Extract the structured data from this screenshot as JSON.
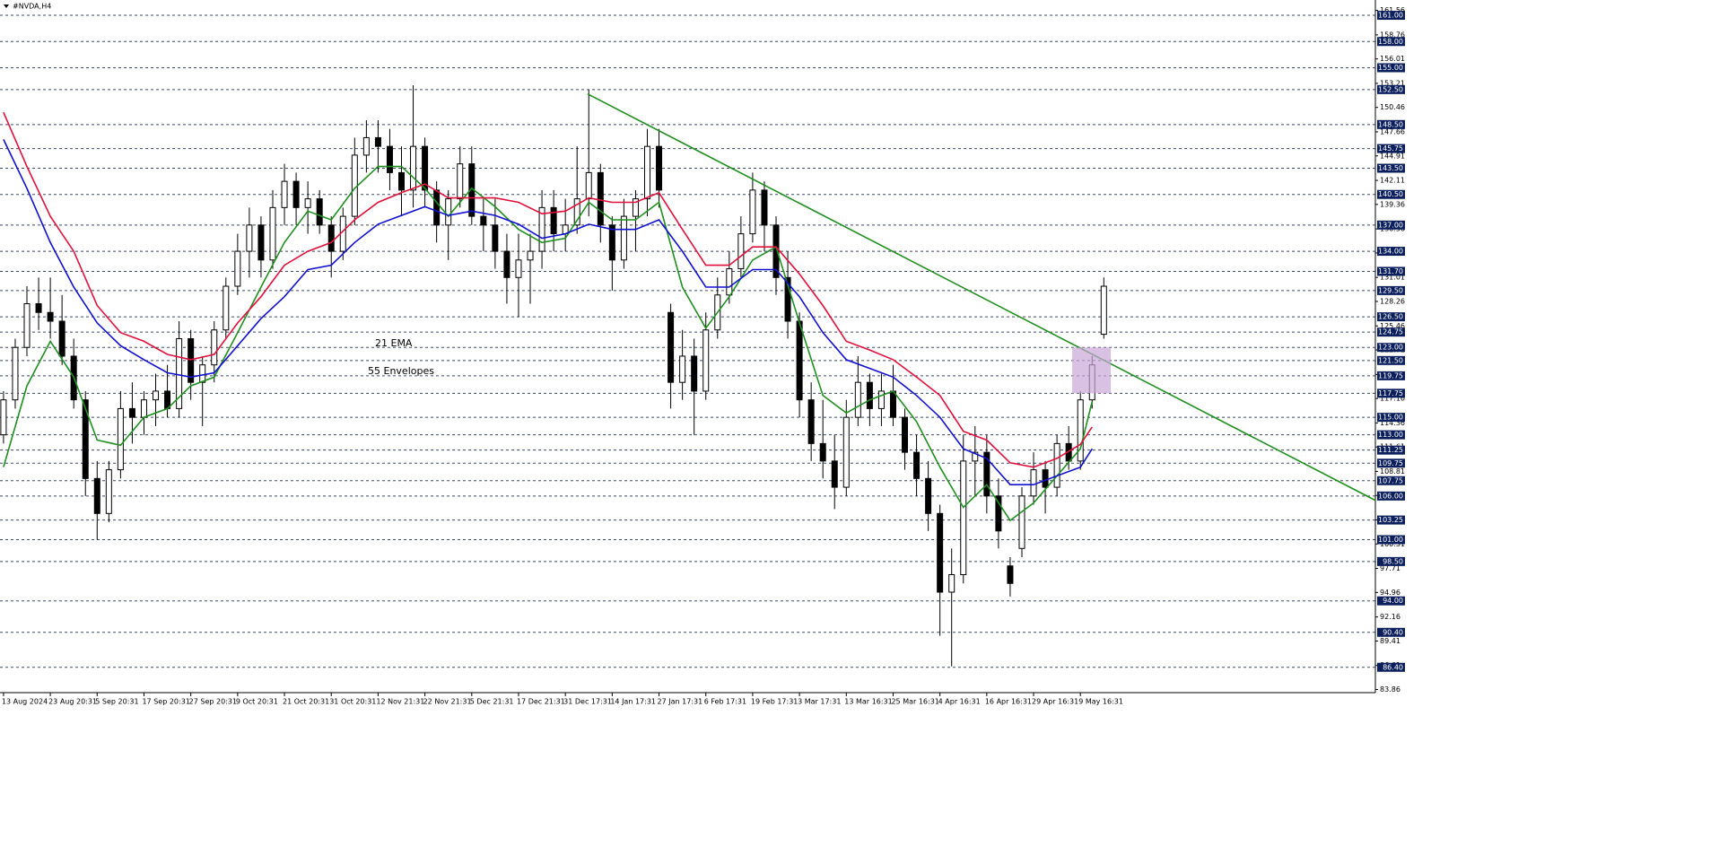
{
  "chart_data": {
    "type": "candlestick",
    "title": "#NVDA,H4",
    "xlim": [
      -0.3,
      117.2
    ],
    "ylim": [
      83.5,
      162.75
    ],
    "xticks": [
      {
        "value": 0,
        "label": "13 Aug 2024"
      },
      {
        "value": 4,
        "label": "23 Aug 20:31"
      },
      {
        "value": 8,
        "label": "5 Sep 20:31"
      },
      {
        "value": 12,
        "label": "17 Sep 20:31"
      },
      {
        "value": 16,
        "label": "27 Sep 20:31"
      },
      {
        "value": 20,
        "label": "9 Oct 20:31"
      },
      {
        "value": 24,
        "label": "21 Oct 20:31"
      },
      {
        "value": 28,
        "label": "31 Oct 20:31"
      },
      {
        "value": 32,
        "label": "12 Nov 21:31"
      },
      {
        "value": 36,
        "label": "22 Nov 21:31"
      },
      {
        "value": 40,
        "label": "5 Dec 21:31"
      },
      {
        "value": 44,
        "label": "17 Dec 21:31"
      },
      {
        "value": 48,
        "label": "31 Dec 17:31"
      },
      {
        "value": 52,
        "label": "14 Jan 17:31"
      },
      {
        "value": 56,
        "label": "27 Jan 17:31"
      },
      {
        "value": 60,
        "label": "6 Feb 17:31"
      },
      {
        "value": 64,
        "label": "19 Feb 17:31"
      },
      {
        "value": 68,
        "label": "3 Mar 17:31"
      },
      {
        "value": 72,
        "label": "13 Mar 16:31"
      },
      {
        "value": 76,
        "label": "25 Mar 16:31"
      },
      {
        "value": 80,
        "label": "4 Apr 16:31"
      },
      {
        "value": 84,
        "label": "16 Apr 16:31"
      },
      {
        "value": 88,
        "label": "29 Apr 16:31"
      },
      {
        "value": 92,
        "label": "9 May 16:31"
      }
    ],
    "yticks": [
      161.56,
      158.76,
      156.01,
      153.21,
      150.46,
      147.66,
      144.91,
      142.11,
      139.36,
      136.56,
      133.81,
      131.01,
      128.26,
      125.46,
      122.71,
      119.91,
      117.16,
      114.36,
      111.61,
      108.81,
      106.06,
      103.26,
      100.51,
      97.71,
      94.96,
      92.16,
      89.41,
      86.61,
      83.86
    ],
    "levels": [
      {
        "value": 161,
        "label": "161.00"
      },
      {
        "value": 158,
        "label": "158.00"
      },
      {
        "value": 155,
        "label": "155.00"
      },
      {
        "value": 152.5,
        "label": "152.50"
      },
      {
        "value": 148.5,
        "label": "148.50"
      },
      {
        "value": 145.75,
        "label": "145.75"
      },
      {
        "value": 143.5,
        "label": "143.50"
      },
      {
        "value": 140.5,
        "label": "140.50"
      },
      {
        "value": 137,
        "label": "137.00"
      },
      {
        "value": 134,
        "label": "134.00"
      },
      {
        "value": 131.7,
        "label": "131.70"
      },
      {
        "value": 129.5,
        "label": "129.50"
      },
      {
        "value": 126.5,
        "label": "126.50"
      },
      {
        "value": 124.75,
        "label": "124.75"
      },
      {
        "value": 123,
        "label": "123.00"
      },
      {
        "value": 121.5,
        "label": "121.50"
      },
      {
        "value": 119.75,
        "label": "119.75"
      },
      {
        "value": 117.75,
        "label": "117.75"
      },
      {
        "value": 115,
        "label": "115.00"
      },
      {
        "value": 113,
        "label": "113.00"
      },
      {
        "value": 111.25,
        "label": "111.25"
      },
      {
        "value": 109.75,
        "label": "109.75"
      },
      {
        "value": 107.75,
        "label": "107.75"
      },
      {
        "value": 106,
        "label": "106.00"
      },
      {
        "value": 103.25,
        "label": "103.25"
      },
      {
        "value": 101,
        "label": "101.00"
      },
      {
        "value": 98.5,
        "label": "98.50"
      },
      {
        "value": 94,
        "label": "94.00"
      },
      {
        "value": 90.4,
        "label": "90.40"
      },
      {
        "value": 86.4,
        "label": "86.40"
      }
    ],
    "level_color": "#3c4866",
    "level_box_color": "#0b1f5c",
    "open": [
      113,
      117,
      123,
      128,
      127,
      126,
      122,
      117,
      108,
      104,
      109,
      116,
      115,
      117,
      118,
      116,
      124,
      119,
      121,
      125,
      130,
      134,
      137,
      133,
      139,
      142,
      139,
      140,
      137,
      134,
      138,
      145,
      147,
      146,
      143,
      141,
      146,
      141,
      137,
      140,
      144,
      138,
      137,
      134,
      131,
      133,
      134,
      139,
      136,
      137,
      140,
      143,
      137,
      133,
      138,
      140,
      146,
      127,
      119,
      122,
      118,
      125,
      129,
      132,
      136,
      141,
      137,
      131,
      126,
      117,
      112,
      110,
      107,
      115,
      119,
      116,
      118,
      115,
      111,
      108,
      104,
      95,
      97,
      110,
      111,
      106,
      98,
      100,
      106,
      109,
      107,
      112,
      110,
      117,
      124.5
    ],
    "high": [
      118,
      124,
      130,
      131,
      131,
      129,
      124,
      118,
      110,
      110,
      118,
      119,
      118,
      120,
      121,
      126,
      125,
      122,
      126,
      131,
      136,
      139,
      138,
      141,
      144,
      143,
      142,
      141,
      138,
      139,
      147,
      149,
      149,
      148,
      146,
      153,
      147,
      142,
      141,
      146,
      146,
      140,
      140,
      136,
      136,
      136,
      141,
      141,
      140,
      146,
      152.5,
      144,
      138,
      140,
      141,
      148,
      148,
      128,
      125,
      124,
      127,
      131,
      134,
      138,
      143,
      142,
      138,
      134,
      127,
      119,
      117,
      113,
      117,
      122,
      120,
      120,
      121,
      116,
      113,
      110,
      105,
      100,
      113,
      114,
      113,
      108,
      99,
      107,
      111,
      110,
      113,
      114,
      118,
      122,
      131
    ],
    "low": [
      112,
      116,
      122,
      125,
      124,
      121,
      116,
      106,
      101,
      103,
      108,
      112,
      113,
      114,
      115,
      115,
      117,
      114,
      119,
      124,
      129,
      131,
      131,
      132,
      137,
      137,
      136,
      136,
      131,
      133,
      137,
      143,
      143,
      141,
      138,
      139,
      139,
      135,
      133,
      139,
      137,
      134,
      132,
      128,
      126.5,
      128,
      132,
      134,
      134,
      136,
      138,
      135,
      129.5,
      132,
      134,
      138,
      139,
      116,
      117,
      113,
      117,
      124,
      128,
      131,
      135,
      134,
      129,
      124,
      115,
      110,
      108,
      104.5,
      106,
      114,
      114,
      114,
      114,
      109,
      106,
      102,
      90,
      86.5,
      96,
      106,
      104,
      100,
      94.5,
      99,
      105,
      104,
      106,
      109,
      109,
      116,
      124
    ],
    "close": [
      117,
      123,
      128,
      127,
      126,
      122,
      117,
      108,
      104,
      109,
      116,
      115,
      117,
      118,
      116,
      124,
      119,
      121,
      125,
      130,
      134,
      137,
      133,
      139,
      142,
      139,
      140,
      137,
      134,
      138,
      145,
      147,
      146,
      143,
      141,
      146,
      141,
      137,
      140,
      144,
      138,
      137,
      134,
      131,
      133,
      134,
      139,
      136,
      137,
      140,
      143,
      137,
      133,
      138,
      140,
      146,
      141,
      119,
      122,
      118,
      125,
      129,
      132,
      136,
      141,
      137,
      131,
      126,
      117,
      112,
      110,
      107,
      115,
      119,
      116,
      118,
      115,
      111,
      108,
      104,
      95,
      97,
      110,
      111,
      106,
      102,
      96,
      106,
      109,
      107,
      112,
      110,
      117,
      121,
      130
    ],
    "up_color": "#ffffff",
    "down_color": "#000000",
    "line_x": [
      0,
      2,
      4,
      6,
      8,
      10,
      12,
      14,
      16,
      18,
      20,
      22,
      24,
      26,
      28,
      30,
      32,
      34,
      36,
      38,
      40,
      42,
      44,
      46,
      48,
      50,
      52,
      54,
      56,
      58,
      60,
      62,
      64,
      66,
      68,
      70,
      72,
      74,
      76,
      78,
      80,
      82,
      84,
      86,
      88,
      90,
      92,
      93
    ],
    "series": [
      {
        "name": "21 EMA",
        "color": "#1f8f1f",
        "values": [
          109.3,
          118.6,
          123.7,
          119.6,
          112.4,
          111.8,
          115,
          116,
          118.6,
          119.6,
          124.7,
          129.9,
          135,
          138.6,
          137.6,
          141.2,
          143.7,
          143.7,
          141.2,
          138,
          141.2,
          139.1,
          136.5,
          135,
          135.5,
          139.6,
          137.6,
          137.6,
          139.6,
          129.9,
          125.2,
          128.8,
          133,
          134.5,
          125.8,
          117.5,
          115.5,
          117,
          118,
          114.5,
          109.3,
          104.7,
          107.3,
          103.2,
          105.2,
          108.3,
          111.4,
          116.8
        ]
      },
      {
        "name": "55 Envelopes",
        "color": "#1010d0",
        "upper_color": "#e0103a",
        "values": [
          146.8,
          141.2,
          135,
          129.9,
          125.8,
          123.2,
          121.6,
          120.1,
          119.6,
          120.1,
          123.2,
          126.3,
          128.8,
          131.9,
          132.4,
          135,
          137.1,
          138.1,
          139.1,
          138.1,
          138.6,
          138.1,
          137.1,
          135.5,
          136,
          137.1,
          136.5,
          136.5,
          137.6,
          134,
          129.9,
          129.9,
          131.9,
          131.9,
          128.8,
          124.7,
          121.6,
          120.6,
          119.6,
          117.5,
          115,
          111.4,
          110.3,
          107.3,
          107.3,
          108.3,
          109.3,
          111.4
        ],
        "upper": [
          149.9,
          143.7,
          138,
          134,
          127.8,
          124.7,
          123.7,
          122.2,
          121.6,
          122.2,
          125.8,
          128.8,
          132.4,
          134,
          135,
          137.6,
          139.6,
          140.7,
          141.7,
          140.1,
          140.1,
          140.1,
          139.6,
          138.3,
          138.6,
          140.1,
          139.6,
          139.6,
          140.7,
          136.5,
          132.4,
          132.4,
          134.5,
          134.5,
          131.4,
          127.8,
          123.7,
          122.7,
          121.6,
          119.6,
          117.5,
          113.4,
          112.4,
          109.8,
          109.3,
          110.3,
          111.9,
          113.9
        ]
      }
    ],
    "trendline": {
      "x": [
        49.9,
        117.2
      ],
      "y": [
        152,
        105.5
      ],
      "color": "#1f8f1f"
    },
    "highlight": {
      "x": [
        91.3,
        94.6
      ],
      "y": [
        117.75,
        123
      ],
      "color": "#c8a6d6"
    }
  }
}
